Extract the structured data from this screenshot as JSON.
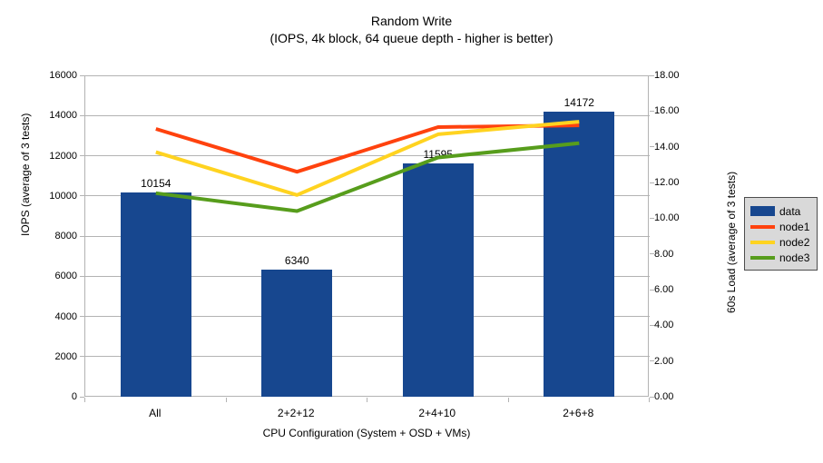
{
  "title": "Random Write",
  "subtitle": "(IOPS, 4k block, 64 queue depth - higher is better)",
  "colors": {
    "bar": "#17478f",
    "node1": "#ff420e",
    "node2": "#ffd320",
    "node3": "#579d1c",
    "axis_gray": "#b3b3b3",
    "legend_bg": "#d9d9d9",
    "legend_border": "#4d4d4d",
    "text": "#000000"
  },
  "chart_data": {
    "type": "bar",
    "title": "Random Write",
    "subtitle": "(IOPS, 4k block, 64 queue depth - higher is better)",
    "categories": [
      "All",
      "2+2+12",
      "2+4+10",
      "2+6+8"
    ],
    "bar_series": {
      "name": "data",
      "values": [
        10154,
        6340,
        11595,
        14172
      ],
      "color_key": "bar",
      "axis": "left",
      "data_labels": [
        "10154",
        "6340",
        "11595",
        "14172"
      ]
    },
    "line_series": [
      {
        "name": "node1",
        "values": [
          15.0,
          12.6,
          15.1,
          15.2
        ],
        "color_key": "node1",
        "axis": "right"
      },
      {
        "name": "node2",
        "values": [
          13.7,
          11.3,
          14.7,
          15.4
        ],
        "color_key": "node2",
        "axis": "right"
      },
      {
        "name": "node3",
        "values": [
          11.4,
          10.4,
          13.4,
          14.2
        ],
        "color_key": "node3",
        "axis": "right"
      }
    ],
    "xlabel": "CPU Configuration (System + OSD + VMs)",
    "ylabel_left": "IOPS (average of 3 tests)",
    "ylabel_right": "60s Load (average of 3 tests)",
    "ylim_left": [
      0,
      16000
    ],
    "ytick_step_left": 2000,
    "yticks_left": [
      "0",
      "2000",
      "4000",
      "6000",
      "8000",
      "10000",
      "12000",
      "14000",
      "16000"
    ],
    "ylim_right": [
      0,
      18
    ],
    "ytick_step_right": 2,
    "yticks_right": [
      "0.00",
      "2.00",
      "4.00",
      "6.00",
      "8.00",
      "10.00",
      "12.00",
      "14.00",
      "16.00",
      "18.00"
    ],
    "grid": "horizontal",
    "legend_position": "right",
    "legend_entries": [
      "data",
      "node1",
      "node2",
      "node3"
    ]
  }
}
